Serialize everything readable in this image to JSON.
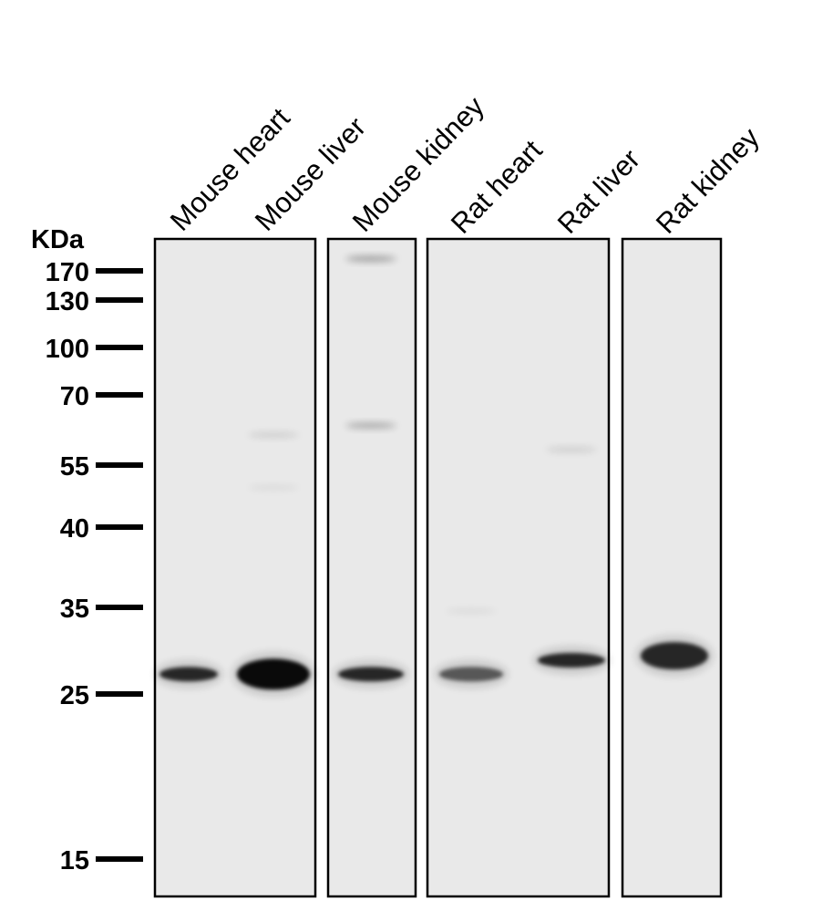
{
  "unit_label": "KDa",
  "markers": [
    {
      "kda": 170,
      "label": "170"
    },
    {
      "kda": 130,
      "label": "130"
    },
    {
      "kda": 100,
      "label": "100"
    },
    {
      "kda": 70,
      "label": "70"
    },
    {
      "kda": 55,
      "label": "55"
    },
    {
      "kda": 40,
      "label": "40"
    },
    {
      "kda": 35,
      "label": "35"
    },
    {
      "kda": 25,
      "label": "25"
    },
    {
      "kda": 15,
      "label": "15"
    }
  ],
  "lanes": [
    {
      "label": "Mouse heart",
      "panel": 1
    },
    {
      "label": "Mouse liver",
      "panel": 1
    },
    {
      "label": "Mouse kidney",
      "panel": 2
    },
    {
      "label": "Rat heart",
      "panel": 3
    },
    {
      "label": "Rat liver",
      "panel": 3
    },
    {
      "label": "Rat kidney",
      "panel": 4
    }
  ],
  "bands": [
    {
      "lane": 0,
      "kda": 27,
      "intensity": 0.85
    },
    {
      "lane": 1,
      "kda": 27,
      "intensity": 1.0
    },
    {
      "lane": 2,
      "kda": 27,
      "intensity": 0.85
    },
    {
      "lane": 3,
      "kda": 27,
      "intensity": 0.6
    },
    {
      "lane": 4,
      "kda": 28.5,
      "intensity": 0.85
    },
    {
      "lane": 5,
      "kda": 29,
      "intensity": 0.85
    },
    {
      "lane": 1,
      "kda": 61,
      "intensity": 0.12
    },
    {
      "lane": 1,
      "kda": 49,
      "intensity": 0.06
    },
    {
      "lane": 2,
      "kda": 63,
      "intensity": 0.3
    },
    {
      "lane": 2,
      "kda": 190,
      "intensity": 0.35
    },
    {
      "lane": 3,
      "kda": 34.5,
      "intensity": 0.06
    },
    {
      "lane": 4,
      "kda": 58,
      "intensity": 0.12
    }
  ],
  "colors": {
    "membrane": "#e9e9e9",
    "band": "#000000",
    "frame": "#000000"
  }
}
